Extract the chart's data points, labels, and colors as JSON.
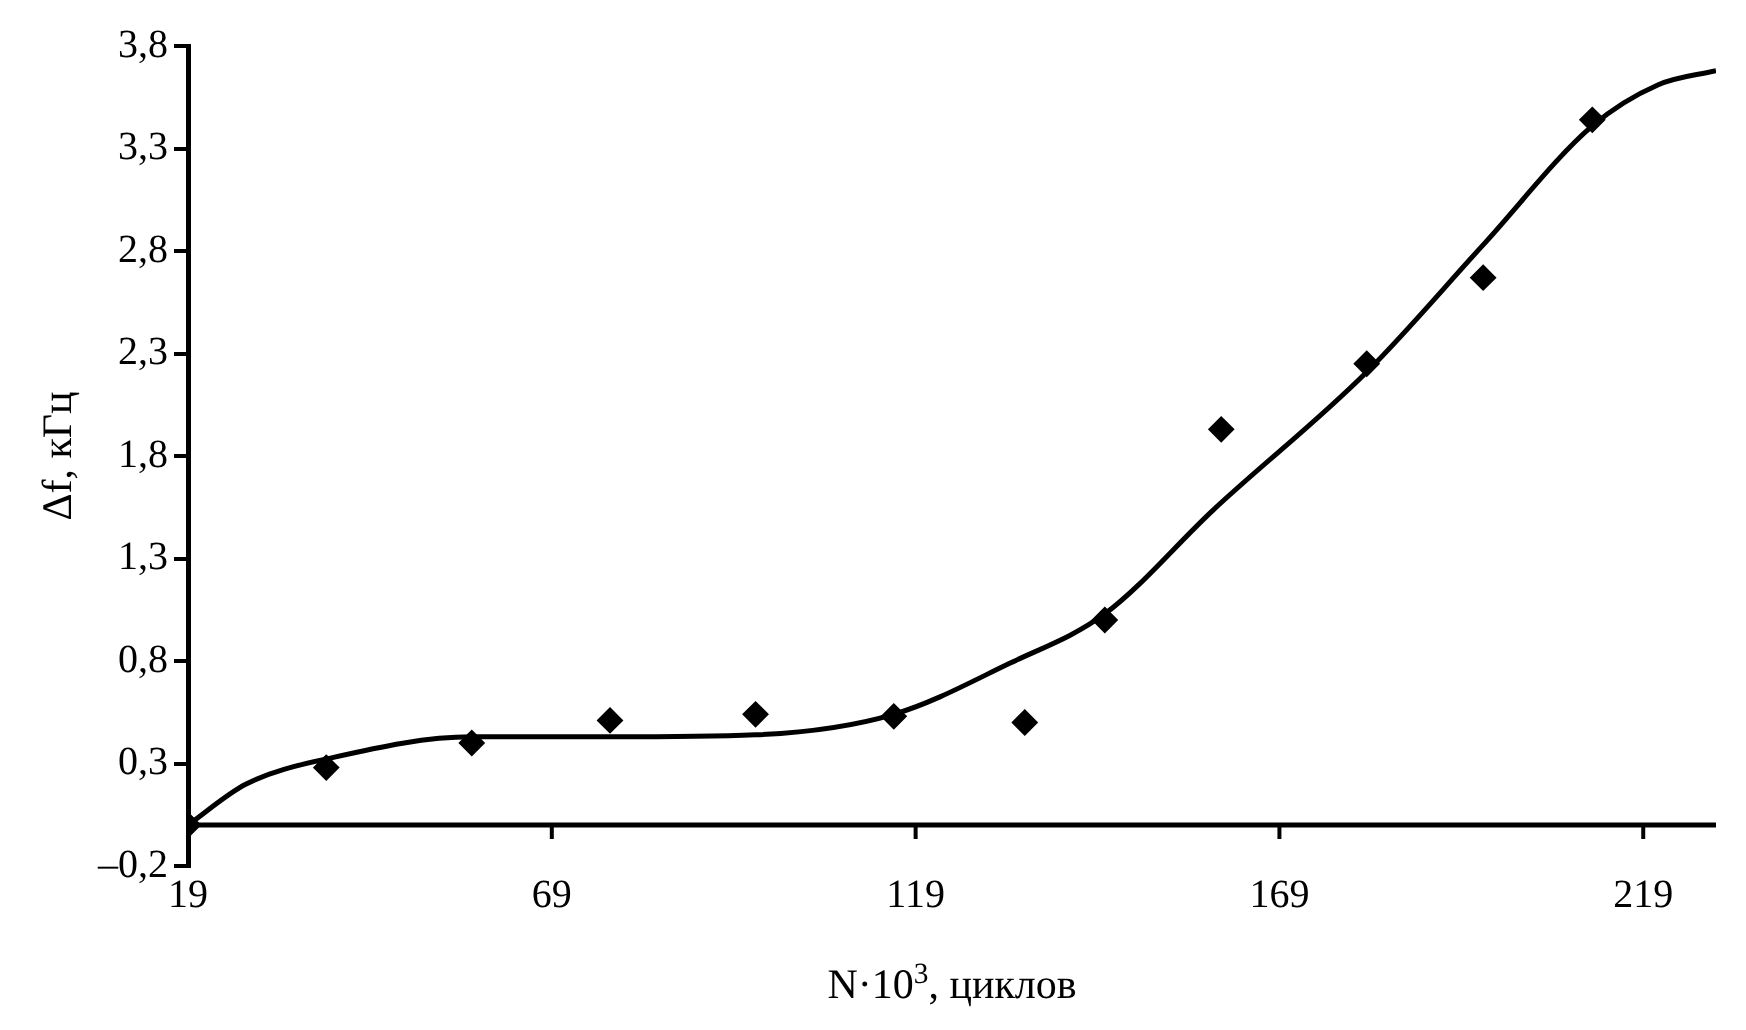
{
  "chart_data": {
    "type": "scatter",
    "xlabel": "N·10$^{3}$, циклов",
    "ylabel": "Δf, кГц",
    "xlim": [
      19,
      229
    ],
    "xticks": [
      19,
      69,
      119,
      169,
      219
    ],
    "ylim": [
      -0.2,
      3.8
    ],
    "yticks": [
      {
        "value": -0.2,
        "label": "–0,2"
      },
      {
        "value": 0.3,
        "label": "0,3"
      },
      {
        "value": 0.8,
        "label": "0,8"
      },
      {
        "value": 1.3,
        "label": "1,3"
      },
      {
        "value": 1.8,
        "label": "1,8"
      },
      {
        "value": 2.3,
        "label": "2,3"
      },
      {
        "value": 2.8,
        "label": "2,8"
      },
      {
        "value": 3.3,
        "label": "3,3"
      },
      {
        "value": 3.8,
        "label": "3,8"
      }
    ],
    "grid": false,
    "legend": false,
    "series": [
      {
        "marker": "diamond",
        "color": "#000000",
        "x": [
          19,
          38,
          58,
          77,
          97,
          116,
          134,
          145,
          161,
          181,
          197,
          212
        ],
        "values": [
          0.0,
          0.28,
          0.4,
          0.51,
          0.54,
          0.53,
          0.5,
          1.0,
          1.93,
          2.25,
          2.67,
          3.44
        ]
      },
      {
        "type": "line",
        "marker": "none",
        "color": "#000000",
        "x": [
          19,
          27,
          39,
          58,
          77,
          97,
          116,
          132,
          145,
          160,
          181,
          197,
          212,
          221,
          229
        ],
        "values": [
          0.0,
          0.2,
          0.33,
          0.43,
          0.43,
          0.44,
          0.54,
          0.79,
          1.03,
          1.54,
          2.21,
          2.83,
          3.41,
          3.61,
          3.68
        ]
      }
    ]
  }
}
